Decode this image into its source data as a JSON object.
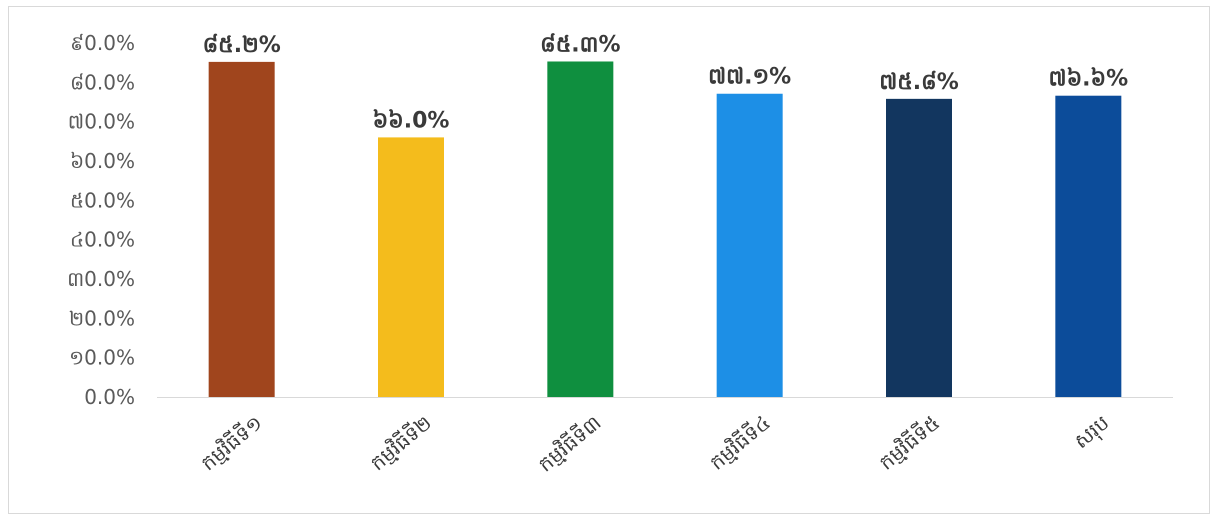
{
  "chart_data": {
    "type": "bar",
    "title": "",
    "xlabel": "",
    "ylabel": "",
    "ylim": [
      0,
      90
    ],
    "y_ticks": [
      0,
      10,
      20,
      30,
      40,
      50,
      60,
      70,
      80,
      90
    ],
    "y_tick_labels": [
      "0.0%",
      "១0.0%",
      "២0.0%",
      "៣0.0%",
      "៤0.0%",
      "៥0.0%",
      "៦0.0%",
      "៧0.0%",
      "៨0.0%",
      "៩0.0%"
    ],
    "grid": false,
    "legend": "none",
    "categories": [
      "កម្មវិធីទី១",
      "កម្មវិធីទី២",
      "កម្មវិធីទី៣",
      "កម្មវិធីទី៤",
      "កម្មវិធីទី៥",
      "សរុប"
    ],
    "values": [
      85.2,
      66.0,
      85.3,
      77.1,
      75.8,
      76.6
    ],
    "data_labels": [
      "៨៥.២%",
      "៦៦.0%",
      "៨៥.៣%",
      "៧៧.១%",
      "៧៥.៨%",
      "៧៦.៦%"
    ],
    "colors": [
      "#a0451d",
      "#f4bc1c",
      "#0f8f3f",
      "#1d8fe6",
      "#12365f",
      "#0c4c9a"
    ]
  }
}
